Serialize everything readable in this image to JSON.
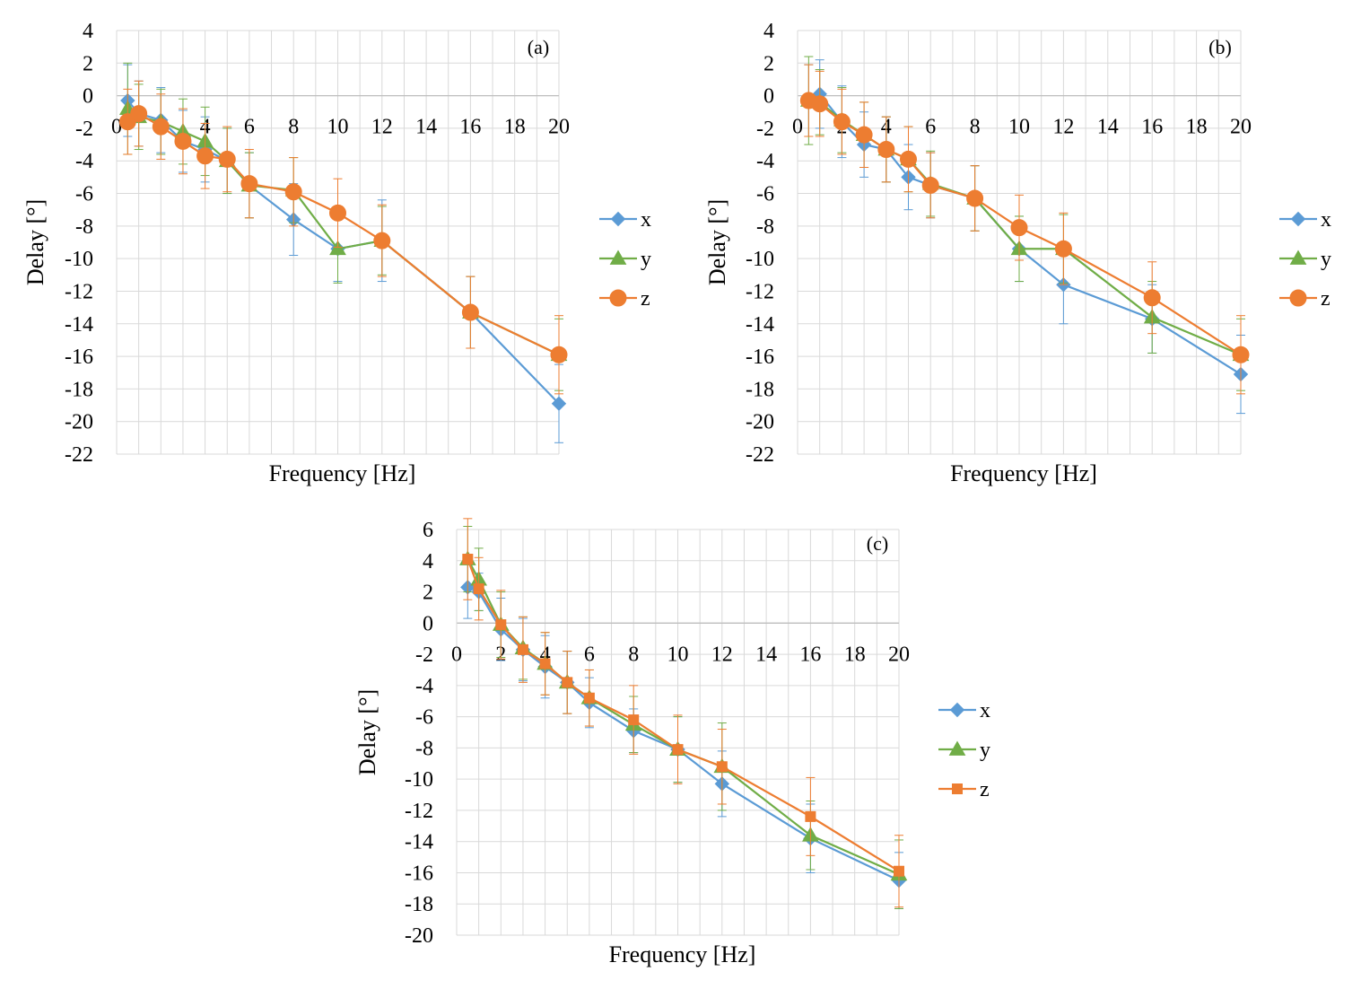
{
  "figure": {
    "colors": {
      "x": "#5B9BD5",
      "y": "#70AD47",
      "z": "#ED7D31",
      "grid": "#D9D9D9",
      "errorbar_x": "#5B9BD5",
      "errorbar_y": "#70AD47",
      "errorbar_z": "#ED7D31"
    }
  },
  "chart_data": [
    {
      "type": "line",
      "panel_label": "(a)",
      "xlabel": "Frequency  [Hz]",
      "ylabel": "Delay [°]",
      "xlim": [
        0,
        20
      ],
      "ylim": [
        -22,
        4
      ],
      "xticks": [
        0,
        2,
        4,
        6,
        8,
        10,
        12,
        14,
        16,
        18,
        20
      ],
      "yticks": [
        4,
        2,
        0,
        -2,
        -4,
        -6,
        -8,
        -10,
        -12,
        -14,
        -16,
        -18,
        -20,
        -22
      ],
      "grid": true,
      "legend_position": "right",
      "series": [
        {
          "name": "x",
          "marker": "diamond",
          "x": [
            0.5,
            1,
            2,
            3,
            4,
            5,
            6,
            8,
            10,
            12,
            16,
            20
          ],
          "values": [
            -0.3,
            -1.1,
            -1.5,
            -2.8,
            -3.3,
            -4.0,
            -5.5,
            -7.6,
            -9.4,
            -8.9,
            -13.3,
            -18.9
          ],
          "errors": [
            2.2,
            2.0,
            2.0,
            1.9,
            2.0,
            2.0,
            2.0,
            2.2,
            2.0,
            2.5,
            2.2,
            2.4
          ]
        },
        {
          "name": "y",
          "marker": "triangle",
          "x": [
            0.5,
            1,
            2,
            3,
            4,
            5,
            6,
            8,
            10,
            12,
            16,
            20
          ],
          "values": [
            -0.8,
            -1.3,
            -1.6,
            -2.2,
            -2.8,
            -4.0,
            -5.5,
            -5.8,
            -9.4,
            -8.9,
            -13.3,
            -15.9
          ],
          "errors": [
            2.8,
            2.0,
            2.0,
            2.0,
            2.1,
            2.0,
            2.0,
            2.0,
            2.1,
            2.1,
            2.2,
            2.2
          ]
        },
        {
          "name": "z",
          "marker": "circle",
          "x": [
            0.5,
            1,
            2,
            3,
            4,
            5,
            6,
            8,
            10,
            12,
            16,
            20
          ],
          "values": [
            -1.6,
            -1.1,
            -1.9,
            -2.8,
            -3.7,
            -3.9,
            -5.4,
            -5.9,
            -7.2,
            -8.9,
            -13.3,
            -15.9
          ],
          "errors": [
            2.0,
            2.0,
            2.0,
            2.0,
            2.0,
            2.0,
            2.1,
            2.1,
            2.1,
            2.2,
            2.2,
            2.4
          ]
        }
      ]
    },
    {
      "type": "line",
      "panel_label": "(b)",
      "xlabel": "Frequency  [Hz]",
      "ylabel": "Delay [°]",
      "xlim": [
        0,
        20
      ],
      "ylim": [
        -22,
        4
      ],
      "xticks": [
        0,
        2,
        4,
        6,
        8,
        10,
        12,
        14,
        16,
        18,
        20
      ],
      "yticks": [
        4,
        2,
        0,
        -2,
        -4,
        -6,
        -8,
        -10,
        -12,
        -14,
        -16,
        -18,
        -20,
        -22
      ],
      "grid": true,
      "legend_position": "right",
      "series": [
        {
          "name": "x",
          "marker": "diamond",
          "x": [
            0.5,
            1,
            2,
            3,
            4,
            5,
            6,
            8,
            10,
            12,
            16,
            20
          ],
          "values": [
            -0.3,
            0.1,
            -1.6,
            -3.0,
            -3.3,
            -5.0,
            -5.5,
            -6.3,
            -9.4,
            -11.6,
            -13.7,
            -17.1
          ],
          "errors": [
            2.2,
            2.1,
            2.2,
            2.0,
            2.0,
            2.0,
            2.0,
            2.0,
            2.0,
            2.4,
            2.1,
            2.4
          ]
        },
        {
          "name": "y",
          "marker": "triangle",
          "x": [
            0.5,
            1,
            2,
            3,
            4,
            5,
            6,
            8,
            10,
            12,
            16,
            20
          ],
          "values": [
            -0.3,
            -0.4,
            -1.5,
            -2.4,
            -3.3,
            -3.9,
            -5.4,
            -6.3,
            -9.4,
            -9.4,
            -13.6,
            -15.9
          ],
          "errors": [
            2.7,
            2.0,
            2.0,
            2.0,
            2.0,
            2.0,
            2.0,
            2.0,
            2.0,
            2.1,
            2.2,
            2.2
          ]
        },
        {
          "name": "z",
          "marker": "circle",
          "x": [
            0.5,
            1,
            2,
            3,
            4,
            5,
            6,
            8,
            10,
            12,
            16,
            20
          ],
          "values": [
            -0.3,
            -0.5,
            -1.6,
            -2.4,
            -3.3,
            -3.9,
            -5.5,
            -6.3,
            -8.1,
            -9.4,
            -12.4,
            -15.9
          ],
          "errors": [
            2.2,
            2.0,
            2.0,
            2.0,
            2.0,
            2.0,
            2.0,
            2.0,
            2.0,
            2.2,
            2.2,
            2.4
          ]
        }
      ]
    },
    {
      "type": "line",
      "panel_label": "(c)",
      "xlabel": "Frequency  [Hz]",
      "ylabel": "Delay [°]",
      "xlim": [
        0,
        20
      ],
      "ylim": [
        -20,
        6
      ],
      "xticks": [
        0,
        2,
        4,
        6,
        8,
        10,
        12,
        14,
        16,
        18,
        20
      ],
      "yticks": [
        6,
        4,
        2,
        0,
        -2,
        -4,
        -6,
        -8,
        -10,
        -12,
        -14,
        -16,
        -18,
        -20
      ],
      "grid": true,
      "legend_position": "right",
      "series": [
        {
          "name": "x",
          "marker": "diamond",
          "x": [
            0.5,
            1,
            2,
            3,
            4,
            5,
            6,
            8,
            10,
            12,
            16,
            20
          ],
          "values": [
            2.3,
            2.0,
            -0.4,
            -1.7,
            -2.8,
            -3.8,
            -5.1,
            -6.9,
            -8.1,
            -10.3,
            -13.8,
            -16.5
          ],
          "errors": [
            2.0,
            1.2,
            2.0,
            2.0,
            2.0,
            2.0,
            1.6,
            1.4,
            2.1,
            2.1,
            2.2,
            1.8
          ]
        },
        {
          "name": "y",
          "marker": "triangle",
          "x": [
            0.5,
            1,
            2,
            3,
            4,
            5,
            6,
            8,
            10,
            12,
            16,
            20
          ],
          "values": [
            4.1,
            2.8,
            -0.1,
            -1.6,
            -2.6,
            -3.8,
            -4.8,
            -6.5,
            -8.1,
            -9.2,
            -13.6,
            -16.1
          ],
          "errors": [
            2.1,
            2.0,
            2.1,
            2.0,
            2.0,
            2.0,
            1.8,
            1.8,
            2.1,
            2.8,
            2.2,
            2.2
          ]
        },
        {
          "name": "z",
          "marker": "square",
          "x": [
            0.5,
            1,
            2,
            3,
            4,
            5,
            6,
            8,
            10,
            12,
            16,
            20
          ],
          "values": [
            4.1,
            2.2,
            -0.1,
            -1.7,
            -2.6,
            -3.8,
            -4.8,
            -6.2,
            -8.1,
            -9.2,
            -12.4,
            -15.9
          ],
          "errors": [
            2.6,
            2.0,
            2.2,
            2.1,
            2.0,
            2.0,
            1.8,
            2.2,
            2.2,
            2.4,
            2.5,
            2.3
          ]
        }
      ]
    }
  ]
}
